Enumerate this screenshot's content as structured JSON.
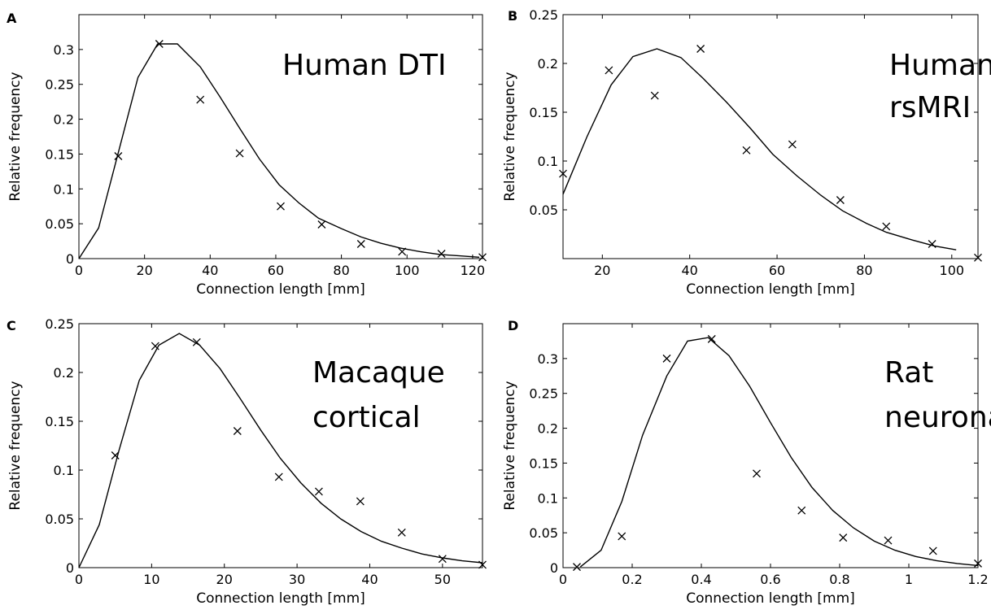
{
  "chart_data": [
    {
      "panel": "A",
      "type": "line+scatter",
      "annotation": [
        "Human DTI"
      ],
      "xlabel": "Connection length [mm]",
      "ylabel": "Relative frequency",
      "xlim": [
        0,
        123
      ],
      "ylim": [
        0,
        0.35
      ],
      "xticks": [
        0,
        20,
        40,
        60,
        80,
        100,
        120
      ],
      "xtick_labels": [
        "0",
        "20",
        "40",
        "60",
        "80",
        "100",
        "120"
      ],
      "yticks": [
        0,
        0.05,
        0.1,
        0.15,
        0.2,
        0.25,
        0.3
      ],
      "ytick_labels": [
        "0",
        "0.05",
        "0.1",
        "0.15",
        "0.2",
        "0.25",
        "0.3"
      ],
      "fit": {
        "x": [
          0,
          6,
          12,
          18,
          24,
          30,
          37,
          43,
          49,
          55,
          61,
          67,
          73,
          80,
          86,
          92,
          98,
          104,
          110,
          116,
          122
        ],
        "y": [
          0,
          0.044,
          0.152,
          0.26,
          0.308,
          0.308,
          0.275,
          0.232,
          0.187,
          0.143,
          0.106,
          0.08,
          0.058,
          0.043,
          0.031,
          0.022,
          0.015,
          0.01,
          0.006,
          0.004,
          0.002
        ]
      },
      "points": {
        "x": [
          12,
          24.5,
          37,
          49,
          61.5,
          74,
          86,
          98.5,
          110.5,
          123
        ],
        "y": [
          0.147,
          0.308,
          0.228,
          0.151,
          0.075,
          0.049,
          0.021,
          0.01,
          0.007,
          0.002
        ]
      }
    },
    {
      "panel": "B",
      "type": "line+scatter",
      "annotation": [
        "Human",
        "rsMRI"
      ],
      "xlabel": "Connection length [mm]",
      "ylabel": "Relative frequency",
      "xlim": [
        11,
        106
      ],
      "ylim": [
        0,
        0.25
      ],
      "xticks": [
        20,
        40,
        60,
        80,
        100
      ],
      "xtick_labels": [
        "20",
        "40",
        "60",
        "80",
        "100"
      ],
      "yticks": [
        0.05,
        0.1,
        0.15,
        0.2,
        0.25
      ],
      "ytick_labels": [
        "0.05",
        "0.1",
        "0.15",
        "0.2",
        "0.25"
      ],
      "fit": {
        "x": [
          11,
          16.5,
          22,
          27,
          32.5,
          38,
          43,
          48.5,
          54,
          59,
          64.5,
          70,
          75,
          80.5,
          85,
          91,
          96,
          101
        ],
        "y": [
          0.066,
          0.125,
          0.178,
          0.207,
          0.215,
          0.206,
          0.185,
          0.16,
          0.133,
          0.107,
          0.085,
          0.065,
          0.049,
          0.036,
          0.027,
          0.019,
          0.013,
          0.009
        ]
      },
      "points": {
        "x": [
          11,
          21.5,
          32,
          42.5,
          53,
          63.5,
          74.5,
          85,
          95.5,
          106
        ],
        "y": [
          0.087,
          0.193,
          0.167,
          0.215,
          0.111,
          0.117,
          0.06,
          0.033,
          0.015,
          0.001
        ]
      }
    },
    {
      "panel": "C",
      "type": "line+scatter",
      "annotation": [
        "Macaque",
        "cortical"
      ],
      "xlabel": "Connection length [mm]",
      "ylabel": "Relative frequency",
      "xlim": [
        0,
        55.5
      ],
      "ylim": [
        0,
        0.25
      ],
      "xticks": [
        0,
        10,
        20,
        30,
        40,
        50
      ],
      "xtick_labels": [
        "0",
        "10",
        "20",
        "30",
        "40",
        "50"
      ],
      "yticks": [
        0,
        0.05,
        0.1,
        0.15,
        0.2,
        0.25
      ],
      "ytick_labels": [
        "0",
        "0.05",
        "0.1",
        "0.15",
        "0.2",
        "0.25"
      ],
      "fit": {
        "x": [
          0,
          2.8,
          5.5,
          8.3,
          11,
          13.8,
          16.6,
          19.4,
          22.2,
          25,
          27.7,
          30.5,
          33.3,
          36,
          38.8,
          41.6,
          44.4,
          47.2,
          50,
          52.7,
          55.5
        ],
        "y": [
          0,
          0.044,
          0.12,
          0.192,
          0.228,
          0.24,
          0.228,
          0.204,
          0.173,
          0.141,
          0.112,
          0.087,
          0.066,
          0.05,
          0.037,
          0.027,
          0.02,
          0.014,
          0.01,
          0.007,
          0.005
        ]
      },
      "points": {
        "x": [
          5,
          10.5,
          16.2,
          21.8,
          27.5,
          33,
          38.7,
          44.4,
          50,
          55.5
        ],
        "y": [
          0.115,
          0.227,
          0.231,
          0.14,
          0.093,
          0.078,
          0.068,
          0.036,
          0.009,
          0.003
        ]
      }
    },
    {
      "panel": "D",
      "type": "line+scatter",
      "annotation": [
        "Rat",
        "neuronal"
      ],
      "xlabel": "Connection length [mm]",
      "ylabel": "Relative frequency",
      "xlim": [
        0,
        1.2
      ],
      "ylim": [
        0,
        0.35
      ],
      "xticks": [
        0,
        0.2,
        0.4,
        0.6,
        0.8,
        1,
        1.2
      ],
      "xtick_labels": [
        "0",
        "0.2",
        "0.4",
        "0.6",
        "0.8",
        "1",
        "1.2"
      ],
      "yticks": [
        0,
        0.05,
        0.1,
        0.15,
        0.2,
        0.25,
        0.3
      ],
      "ytick_labels": [
        "0",
        "0.05",
        "0.1",
        "0.15",
        "0.2",
        "0.25",
        "0.3"
      ],
      "fit": {
        "x": [
          0.05,
          0.11,
          0.17,
          0.23,
          0.3,
          0.36,
          0.42,
          0.48,
          0.54,
          0.6,
          0.66,
          0.72,
          0.78,
          0.84,
          0.9,
          0.96,
          1.02,
          1.08,
          1.14,
          1.2
        ],
        "y": [
          0.001,
          0.025,
          0.095,
          0.19,
          0.275,
          0.325,
          0.33,
          0.304,
          0.26,
          0.208,
          0.158,
          0.115,
          0.082,
          0.057,
          0.038,
          0.025,
          0.016,
          0.01,
          0.006,
          0.003
        ]
      },
      "points": {
        "x": [
          0.04,
          0.17,
          0.3,
          0.43,
          0.56,
          0.69,
          0.81,
          0.94,
          1.07,
          1.2
        ],
        "y": [
          0.001,
          0.045,
          0.3,
          0.328,
          0.135,
          0.082,
          0.043,
          0.039,
          0.024,
          0.006
        ]
      }
    }
  ]
}
